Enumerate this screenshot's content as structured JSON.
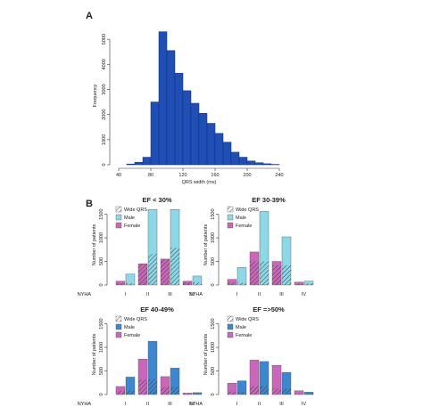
{
  "panel_labels": {
    "a": "A",
    "b": "B"
  },
  "colors": {
    "histogram_fill": "#1f4fb5",
    "histogram_stroke": "#0b2a78",
    "female": "#cc66bb",
    "male_ef_low": "#8ad8e8",
    "male_ef_high": "#3c88d0",
    "axis": "#333333"
  },
  "chart_data": [
    {
      "type": "bar",
      "subtype": "histogram",
      "title": "",
      "xlabel": "QRS width (ms)",
      "ylabel": "Frequency",
      "xlim": [
        40,
        240
      ],
      "ylim": [
        0,
        5500
      ],
      "x_ticks": [
        40,
        80,
        120,
        160,
        200,
        240
      ],
      "y_ticks": [
        0,
        1000,
        2000,
        3000,
        4000,
        5000
      ],
      "bin_width": 10,
      "bin_starts": [
        50,
        60,
        70,
        80,
        90,
        100,
        110,
        120,
        130,
        140,
        150,
        160,
        170,
        180,
        190,
        200,
        210,
        220,
        230
      ],
      "values": [
        30,
        100,
        300,
        2500,
        5300,
        4550,
        3650,
        2950,
        2450,
        2050,
        1650,
        1250,
        900,
        500,
        300,
        150,
        80,
        40,
        15
      ],
      "grid": false
    },
    {
      "type": "bar",
      "title": "EF < 30%",
      "xlabel": "NYHA",
      "ylabel": "Number of patients",
      "categories": [
        "I",
        "II",
        "III",
        "IV"
      ],
      "ylim": [
        0,
        1700
      ],
      "y_ticks": [
        0,
        500,
        1000,
        1500
      ],
      "series": [
        {
          "name": "Female",
          "values": [
            80,
            450,
            550,
            80
          ]
        },
        {
          "name": "Male",
          "values": [
            230,
            1600,
            1600,
            190
          ]
        },
        {
          "name": "Wide QRS",
          "values": [
            40,
            660,
            790,
            60
          ]
        }
      ],
      "legend": "top-left",
      "grid": false
    },
    {
      "type": "bar",
      "title": "EF 30-39%",
      "xlabel": "NYHA",
      "ylabel": "Number of patients",
      "categories": [
        "I",
        "II",
        "III",
        "IV"
      ],
      "ylim": [
        0,
        1700
      ],
      "y_ticks": [
        0,
        500,
        1000,
        1500
      ],
      "series": [
        {
          "name": "Female",
          "values": [
            120,
            700,
            500,
            60
          ]
        },
        {
          "name": "Male",
          "values": [
            370,
            1560,
            1020,
            80
          ]
        },
        {
          "name": "Wide QRS",
          "values": [
            50,
            500,
            420,
            30
          ]
        }
      ],
      "legend": "top-left",
      "grid": false
    },
    {
      "type": "bar",
      "title": "EF 40-49%",
      "xlabel": "NYHA",
      "ylabel": "Number of patients",
      "categories": [
        "I",
        "II",
        "III",
        "IV"
      ],
      "ylim": [
        0,
        1700
      ],
      "y_ticks": [
        0,
        500,
        1000,
        1500
      ],
      "series": [
        {
          "name": "Female",
          "values": [
            170,
            750,
            380,
            30
          ]
        },
        {
          "name": "Male",
          "values": [
            370,
            1130,
            560,
            40
          ]
        },
        {
          "name": "Wide QRS",
          "values": [
            80,
            320,
            160,
            20
          ]
        }
      ],
      "legend": "top-left",
      "grid": false
    },
    {
      "type": "bar",
      "title": "EF =>50%",
      "xlabel": "NYHA",
      "ylabel": "Number of patients",
      "categories": [
        "I",
        "II",
        "III",
        "IV"
      ],
      "ylim": [
        0,
        1700
      ],
      "y_ticks": [
        0,
        500,
        1000,
        1500
      ],
      "series": [
        {
          "name": "Female",
          "values": [
            240,
            730,
            620,
            80
          ]
        },
        {
          "name": "Male",
          "values": [
            290,
            700,
            470,
            50
          ]
        },
        {
          "name": "Wide QRS",
          "values": [
            60,
            180,
            130,
            20
          ]
        }
      ],
      "legend": "top-left",
      "grid": false
    }
  ]
}
